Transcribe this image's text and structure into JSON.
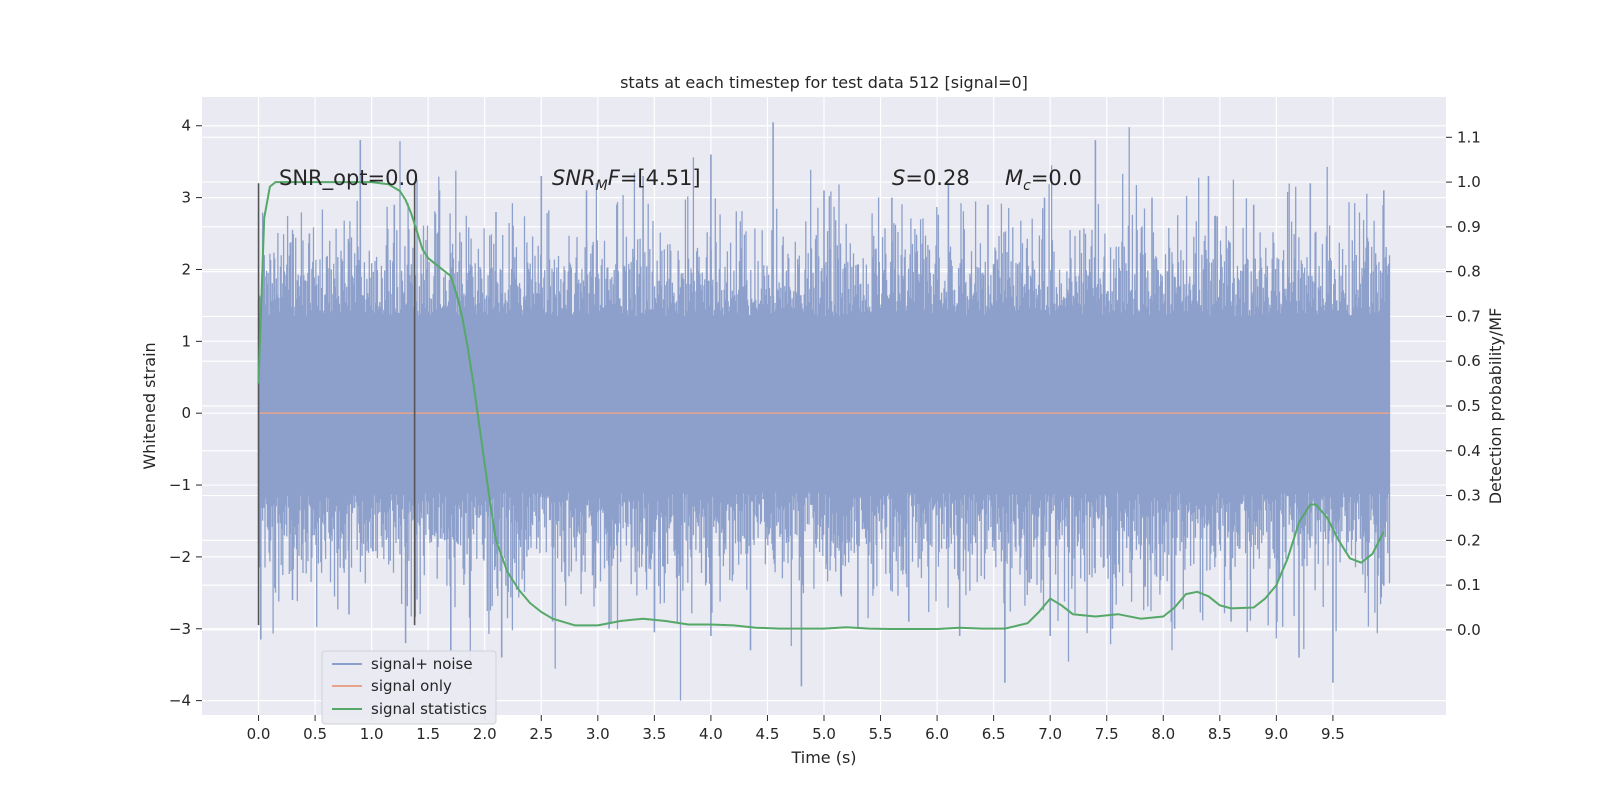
{
  "chart_data": {
    "type": "line",
    "title": "stats at each timestep for test data 512 [signal=0]",
    "xlabel": "Time (s)",
    "ylabel": "Whitened strain",
    "y2label": "Detection probability/MF",
    "xlim": [
      -0.5,
      10.5
    ],
    "ylim": [
      -4.2,
      4.4
    ],
    "y2lim": [
      -0.19,
      1.19
    ],
    "x_ticks": [
      0.0,
      0.5,
      1.0,
      1.5,
      2.0,
      2.5,
      3.0,
      3.5,
      4.0,
      4.5,
      5.0,
      5.5,
      6.0,
      6.5,
      7.0,
      7.5,
      8.0,
      8.5,
      9.0,
      9.5
    ],
    "x_tick_labels": [
      "0.0",
      "0.5",
      "1.0",
      "1.5",
      "2.0",
      "2.5",
      "3.0",
      "3.5",
      "4.0",
      "4.5",
      "5.0",
      "5.5",
      "6.0",
      "6.5",
      "7.0",
      "7.5",
      "8.0",
      "8.5",
      "9.0",
      "9.5"
    ],
    "y_ticks": [
      4,
      3,
      2,
      1,
      0,
      -1,
      -2,
      -3,
      -4
    ],
    "y_tick_labels": [
      "4",
      "3",
      "2",
      "1",
      "0",
      "−1",
      "−2",
      "−3",
      "−4"
    ],
    "y2_ticks": [
      1.1,
      1.0,
      0.9,
      0.8,
      0.7,
      0.6,
      0.5,
      0.4,
      0.3,
      0.2,
      0.1,
      0.0
    ],
    "y2_tick_labels": [
      "1.1",
      "1.0",
      "0.9",
      "0.8",
      "0.7",
      "0.6",
      "0.5",
      "0.4",
      "0.3",
      "0.2",
      "0.1",
      "0.0"
    ],
    "grid": true,
    "legend_position": "lower-left",
    "annotations": {
      "snr_opt": "SNR_opt=0.0",
      "snr_mf_symbol": "SNR",
      "snr_mf_sub": "M",
      "snr_mf_F": "F",
      "snr_mf_value": "=[4.51]",
      "s_symbol": "S",
      "s_value": "=0.28",
      "mc_symbol": "M",
      "mc_sub": "c",
      "mc_value": "=0.0"
    },
    "vertical_markers": [
      {
        "x": 0.0,
        "y_range": [
          -2.95,
          3.2
        ]
      },
      {
        "x": 1.38,
        "y_range": [
          -2.95,
          3.2
        ]
      }
    ],
    "series": [
      {
        "name": "signal+ noise",
        "color": "#8da0cb",
        "axis": "left",
        "x_range": [
          0.0,
          10.0
        ],
        "core_band": [
          -1.1,
          1.35
        ],
        "positive_extremes": [
          [
            0.05,
            2.2
          ],
          [
            0.45,
            2.5
          ],
          [
            0.9,
            3.8
          ],
          [
            1.2,
            2.9
          ],
          [
            1.6,
            3.1
          ],
          [
            2.1,
            2.8
          ],
          [
            2.5,
            3.3
          ],
          [
            2.9,
            3.1
          ],
          [
            3.4,
            3.3
          ],
          [
            4.0,
            3.6
          ],
          [
            4.55,
            4.05
          ],
          [
            5.0,
            3.1
          ],
          [
            5.6,
            3.0
          ],
          [
            6.1,
            3.2
          ],
          [
            6.45,
            2.9
          ],
          [
            6.95,
            3.0
          ],
          [
            7.4,
            3.8
          ],
          [
            7.9,
            3.0
          ],
          [
            8.4,
            3.3
          ],
          [
            8.8,
            2.9
          ],
          [
            9.3,
            3.2
          ],
          [
            9.95,
            3.1
          ]
        ],
        "negative_extremes": [
          [
            0.02,
            -3.15
          ],
          [
            0.3,
            -2.6
          ],
          [
            0.8,
            -2.8
          ],
          [
            1.3,
            -3.2
          ],
          [
            1.7,
            -3.3
          ],
          [
            2.15,
            -3.4
          ],
          [
            2.6,
            -2.9
          ],
          [
            3.1,
            -3.0
          ],
          [
            3.5,
            -3.05
          ],
          [
            4.0,
            -3.1
          ],
          [
            4.35,
            -3.3
          ],
          [
            4.8,
            -3.8
          ],
          [
            5.3,
            -3.0
          ],
          [
            5.75,
            -2.9
          ],
          [
            6.2,
            -3.1
          ],
          [
            6.6,
            -3.75
          ],
          [
            7.0,
            -3.1
          ],
          [
            7.55,
            -3.0
          ],
          [
            8.1,
            -3.0
          ],
          [
            8.6,
            -2.9
          ],
          [
            9.2,
            -3.4
          ],
          [
            9.5,
            -3.75
          ],
          [
            9.95,
            -2.4
          ]
        ]
      },
      {
        "name": "signal only",
        "color": "#e8a48a",
        "axis": "left",
        "x": [
          0.0,
          10.0
        ],
        "y": [
          0.0,
          0.0
        ]
      },
      {
        "name": "signal statistics",
        "color": "#55a868",
        "axis": "right",
        "x": [
          0.0,
          0.05,
          0.1,
          0.15,
          0.25,
          0.4,
          0.6,
          0.8,
          1.0,
          1.15,
          1.25,
          1.3,
          1.35,
          1.4,
          1.45,
          1.5,
          1.55,
          1.6,
          1.7,
          1.75,
          1.8,
          1.85,
          1.9,
          1.95,
          2.0,
          2.05,
          2.1,
          2.2,
          2.3,
          2.4,
          2.5,
          2.6,
          2.8,
          3.0,
          3.2,
          3.4,
          3.6,
          3.8,
          4.0,
          4.2,
          4.4,
          4.6,
          4.8,
          5.0,
          5.2,
          5.4,
          5.6,
          5.8,
          6.0,
          6.2,
          6.4,
          6.6,
          6.8,
          6.9,
          7.0,
          7.1,
          7.2,
          7.4,
          7.6,
          7.8,
          8.0,
          8.1,
          8.2,
          8.3,
          8.4,
          8.5,
          8.6,
          8.8,
          8.9,
          9.0,
          9.1,
          9.2,
          9.3,
          9.35,
          9.45,
          9.55,
          9.65,
          9.75,
          9.85,
          9.95
        ],
        "y": [
          0.55,
          0.92,
          0.99,
          1.0,
          1.0,
          1.0,
          1.0,
          1.0,
          1.0,
          0.995,
          0.98,
          0.96,
          0.93,
          0.89,
          0.85,
          0.83,
          0.82,
          0.81,
          0.79,
          0.75,
          0.7,
          0.63,
          0.55,
          0.46,
          0.37,
          0.28,
          0.2,
          0.13,
          0.09,
          0.06,
          0.04,
          0.025,
          0.01,
          0.01,
          0.02,
          0.025,
          0.02,
          0.012,
          0.012,
          0.01,
          0.005,
          0.003,
          0.003,
          0.003,
          0.006,
          0.003,
          0.002,
          0.002,
          0.002,
          0.005,
          0.003,
          0.003,
          0.015,
          0.04,
          0.07,
          0.055,
          0.035,
          0.03,
          0.035,
          0.025,
          0.03,
          0.05,
          0.08,
          0.085,
          0.075,
          0.055,
          0.048,
          0.05,
          0.07,
          0.1,
          0.16,
          0.24,
          0.28,
          0.28,
          0.25,
          0.2,
          0.16,
          0.15,
          0.17,
          0.22
        ]
      }
    ]
  }
}
